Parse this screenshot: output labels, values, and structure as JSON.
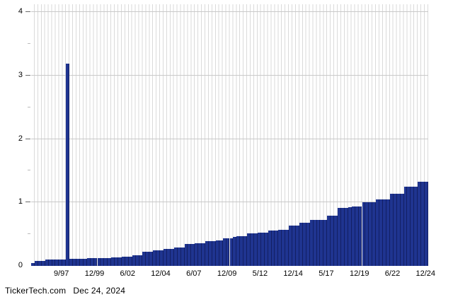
{
  "chart_data": {
    "type": "bar",
    "title": "",
    "xlabel": "",
    "ylabel": "",
    "ylim": [
      0,
      4
    ],
    "y_ticks": [
      0,
      1,
      2,
      3,
      4
    ],
    "y_minor_ticks": [
      0.5,
      1.5,
      2.5,
      3.5
    ],
    "grid": "vertical stripe per bar slot, horizontal lines at integer values",
    "legend": "none",
    "x_tick_labels": [
      "9/97",
      "12/99",
      "6/02",
      "12/04",
      "6/07",
      "12/09",
      "5/12",
      "12/14",
      "5/17",
      "12/19",
      "6/22",
      "12/24"
    ],
    "x_tick_first_center_pct": 7.61,
    "x_tick_spacing_pct": 8.339,
    "special_dividend": {
      "index": 10,
      "value": 3.19,
      "approx_label": "9/97-12/97 spike"
    },
    "values": [
      0.04,
      0.08,
      0.08,
      0.08,
      0.1,
      0.1,
      0.1,
      0.1,
      0.1,
      0.1,
      3.19,
      0.11,
      0.11,
      0.11,
      0.11,
      0.11,
      0.12,
      0.12,
      0.12,
      0.12,
      0.12,
      0.12,
      0.12,
      0.13,
      0.13,
      0.13,
      0.15,
      0.15,
      0.15,
      0.17,
      0.17,
      0.17,
      0.22,
      0.22,
      0.22,
      0.24,
      0.24,
      0.24,
      0.27,
      0.27,
      0.27,
      0.29,
      0.29,
      0.29,
      0.35,
      0.35,
      0.35,
      0.36,
      0.36,
      0.36,
      0.39,
      0.39,
      0.39,
      0.4,
      0.4,
      0.44,
      0.44,
      0.44,
      0.46,
      0.47,
      0.47,
      0.47,
      0.51,
      0.51,
      0.51,
      0.52,
      0.52,
      0.52,
      0.56,
      0.56,
      0.56,
      0.57,
      0.57,
      0.57,
      0.63,
      0.63,
      0.63,
      0.68,
      0.68,
      0.68,
      0.72,
      0.72,
      0.72,
      0.72,
      0.72,
      0.79,
      0.79,
      0.79,
      0.91,
      0.91,
      0.91,
      0.93,
      0.94,
      0.94,
      0.94,
      1.0,
      1.0,
      1.0,
      1.0,
      1.05,
      1.05,
      1.05,
      1.05,
      1.14,
      1.14,
      1.14,
      1.14,
      1.25,
      1.25,
      1.25,
      1.25,
      1.33,
      1.33,
      1.33
    ]
  },
  "colors": {
    "bar_fill": "#1f3490",
    "bar_edge": "#121f63",
    "stripe_grid": "#dadada",
    "major_grid": "#c9c9c9",
    "text": "#000000",
    "background": "#ffffff"
  },
  "footer": {
    "brand": "TickerTech.com",
    "date": "Dec 24, 2024"
  }
}
